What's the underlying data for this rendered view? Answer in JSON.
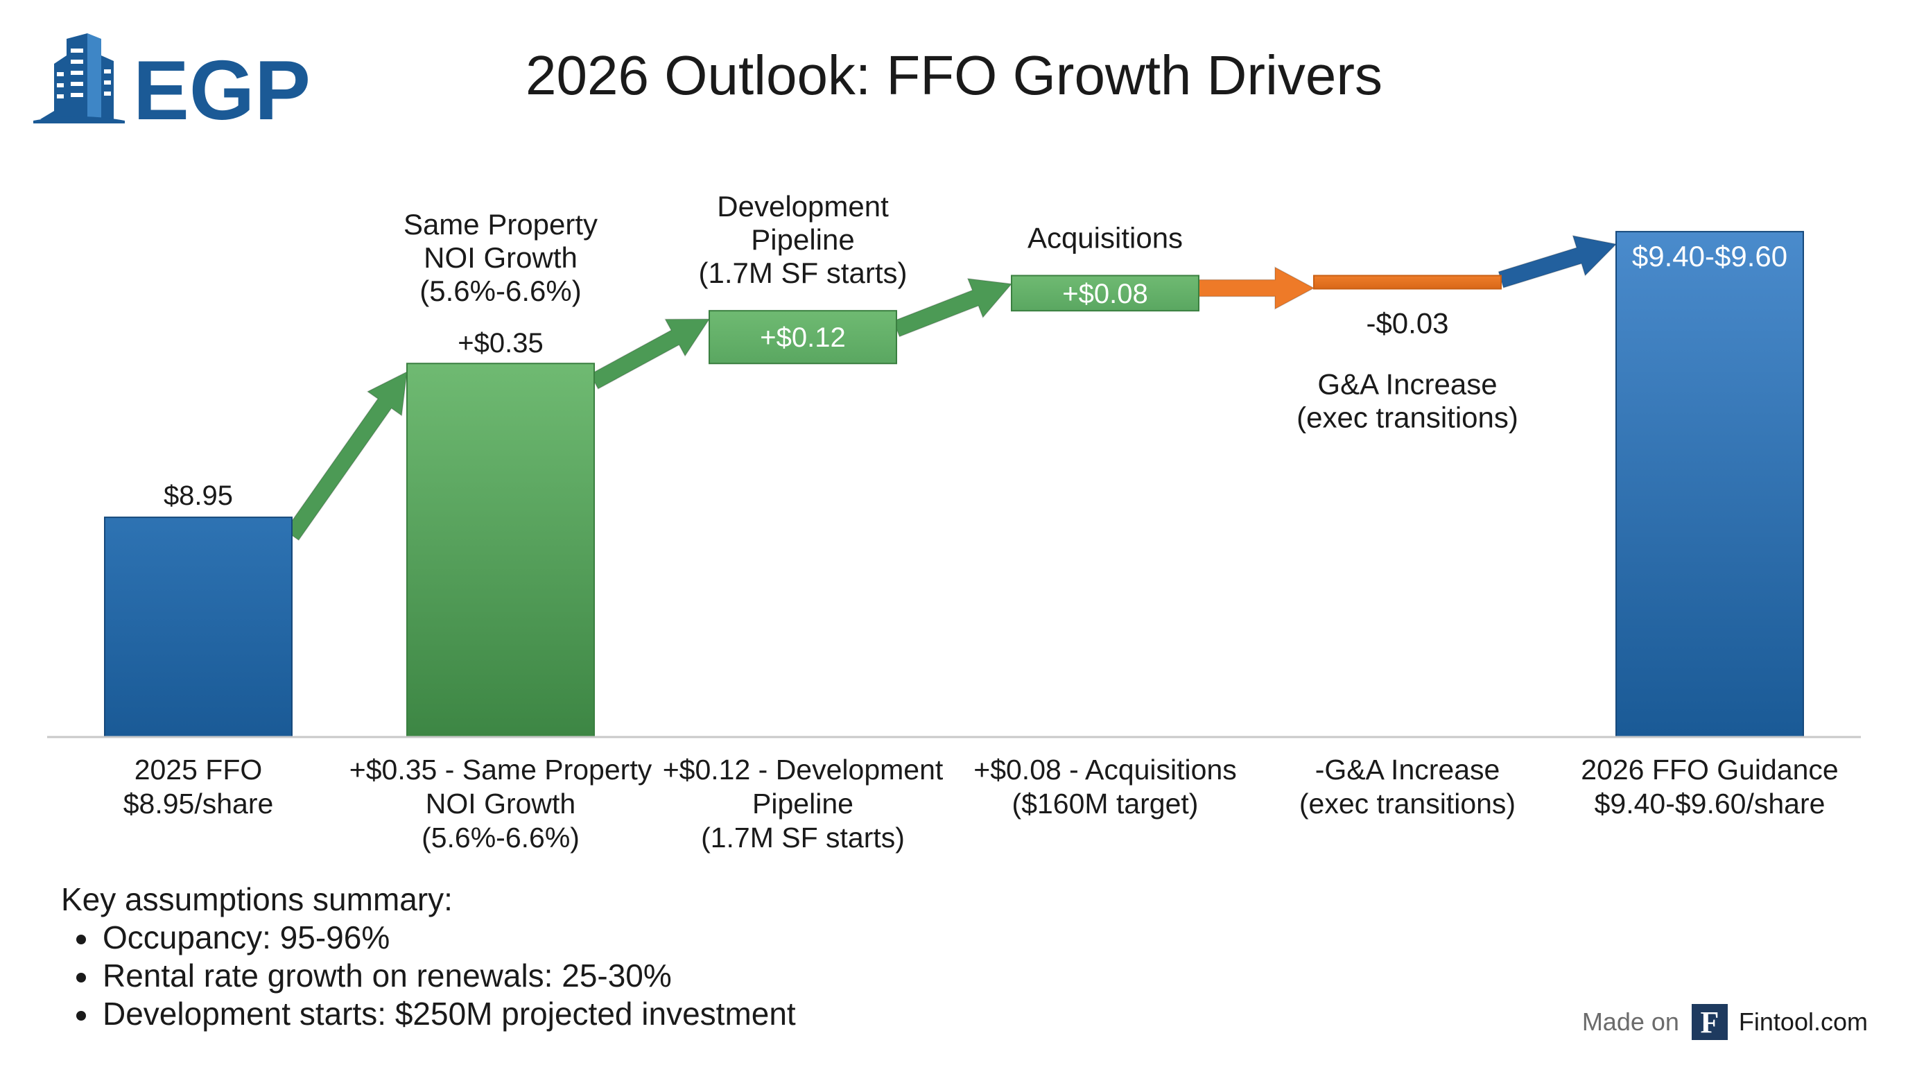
{
  "logo": {
    "text": "EGP",
    "colors": {
      "primary": "#1b5a96",
      "light": "#3e86c6"
    }
  },
  "chart_data": {
    "type": "waterfall",
    "title": "2026 Outlook: FFO Growth Drivers",
    "ylim": [
      8.45,
      9.78
    ],
    "colors": {
      "total": "#1a5a96",
      "total_light": "#2e73b3",
      "total_end_light": "#4a8bcc",
      "increase": "#5aa761",
      "increase_light": "#6fba72",
      "increase_dark": "#3d8644",
      "decrease": "#ef7d2a",
      "decrease_dark": "#d96818",
      "arrow_green": "#4c9a55",
      "arrow_orange": "#ee7a28",
      "arrow_blue": "#22609e",
      "axis": "#c8c8c8"
    },
    "steps": [
      {
        "kind": "total",
        "value": 8.95,
        "value_label": "$8.95",
        "category_label": [
          "2025 FFO",
          "$8.95/share"
        ]
      },
      {
        "kind": "increase",
        "value": 0.35,
        "value_label": "+$0.35",
        "annotation": [
          "Same Property",
          "NOI Growth",
          "(5.6%-6.6%)"
        ],
        "category_label": [
          "+$0.35 - Same Property",
          "NOI Growth",
          "(5.6%-6.6%)"
        ]
      },
      {
        "kind": "increase",
        "value": 0.12,
        "value_label": "+$0.12",
        "annotation": [
          "Development",
          "Pipeline",
          "(1.7M SF starts)"
        ],
        "category_label": [
          "+$0.12 - Development",
          "Pipeline",
          "(1.7M SF starts)"
        ]
      },
      {
        "kind": "increase",
        "value": 0.08,
        "value_label": "+$0.08",
        "annotation": [
          "Acquisitions"
        ],
        "category_label": [
          "+$0.08 - Acquisitions",
          "($160M target)"
        ]
      },
      {
        "kind": "decrease",
        "value": -0.03,
        "value_label": "-$0.03",
        "annotation": [
          "G&A Increase",
          "(exec transitions)"
        ],
        "category_label": [
          "-G&A Increase",
          "(exec transitions)"
        ]
      },
      {
        "kind": "total",
        "value_low": 9.4,
        "value_high": 9.6,
        "value_label": "$9.40-$9.60",
        "category_label": [
          "2026 FFO Guidance",
          "$9.40-$9.60/share"
        ]
      }
    ]
  },
  "summary": {
    "title": "Key assumptions summary:",
    "items": [
      "Occupancy: 95-96%",
      "Rental rate growth on renewals: 25-30%",
      "Development starts: $250M projected investment"
    ]
  },
  "footer": {
    "made_on": "Made on",
    "icon_letter": "F",
    "brand": "Fintool.com"
  }
}
